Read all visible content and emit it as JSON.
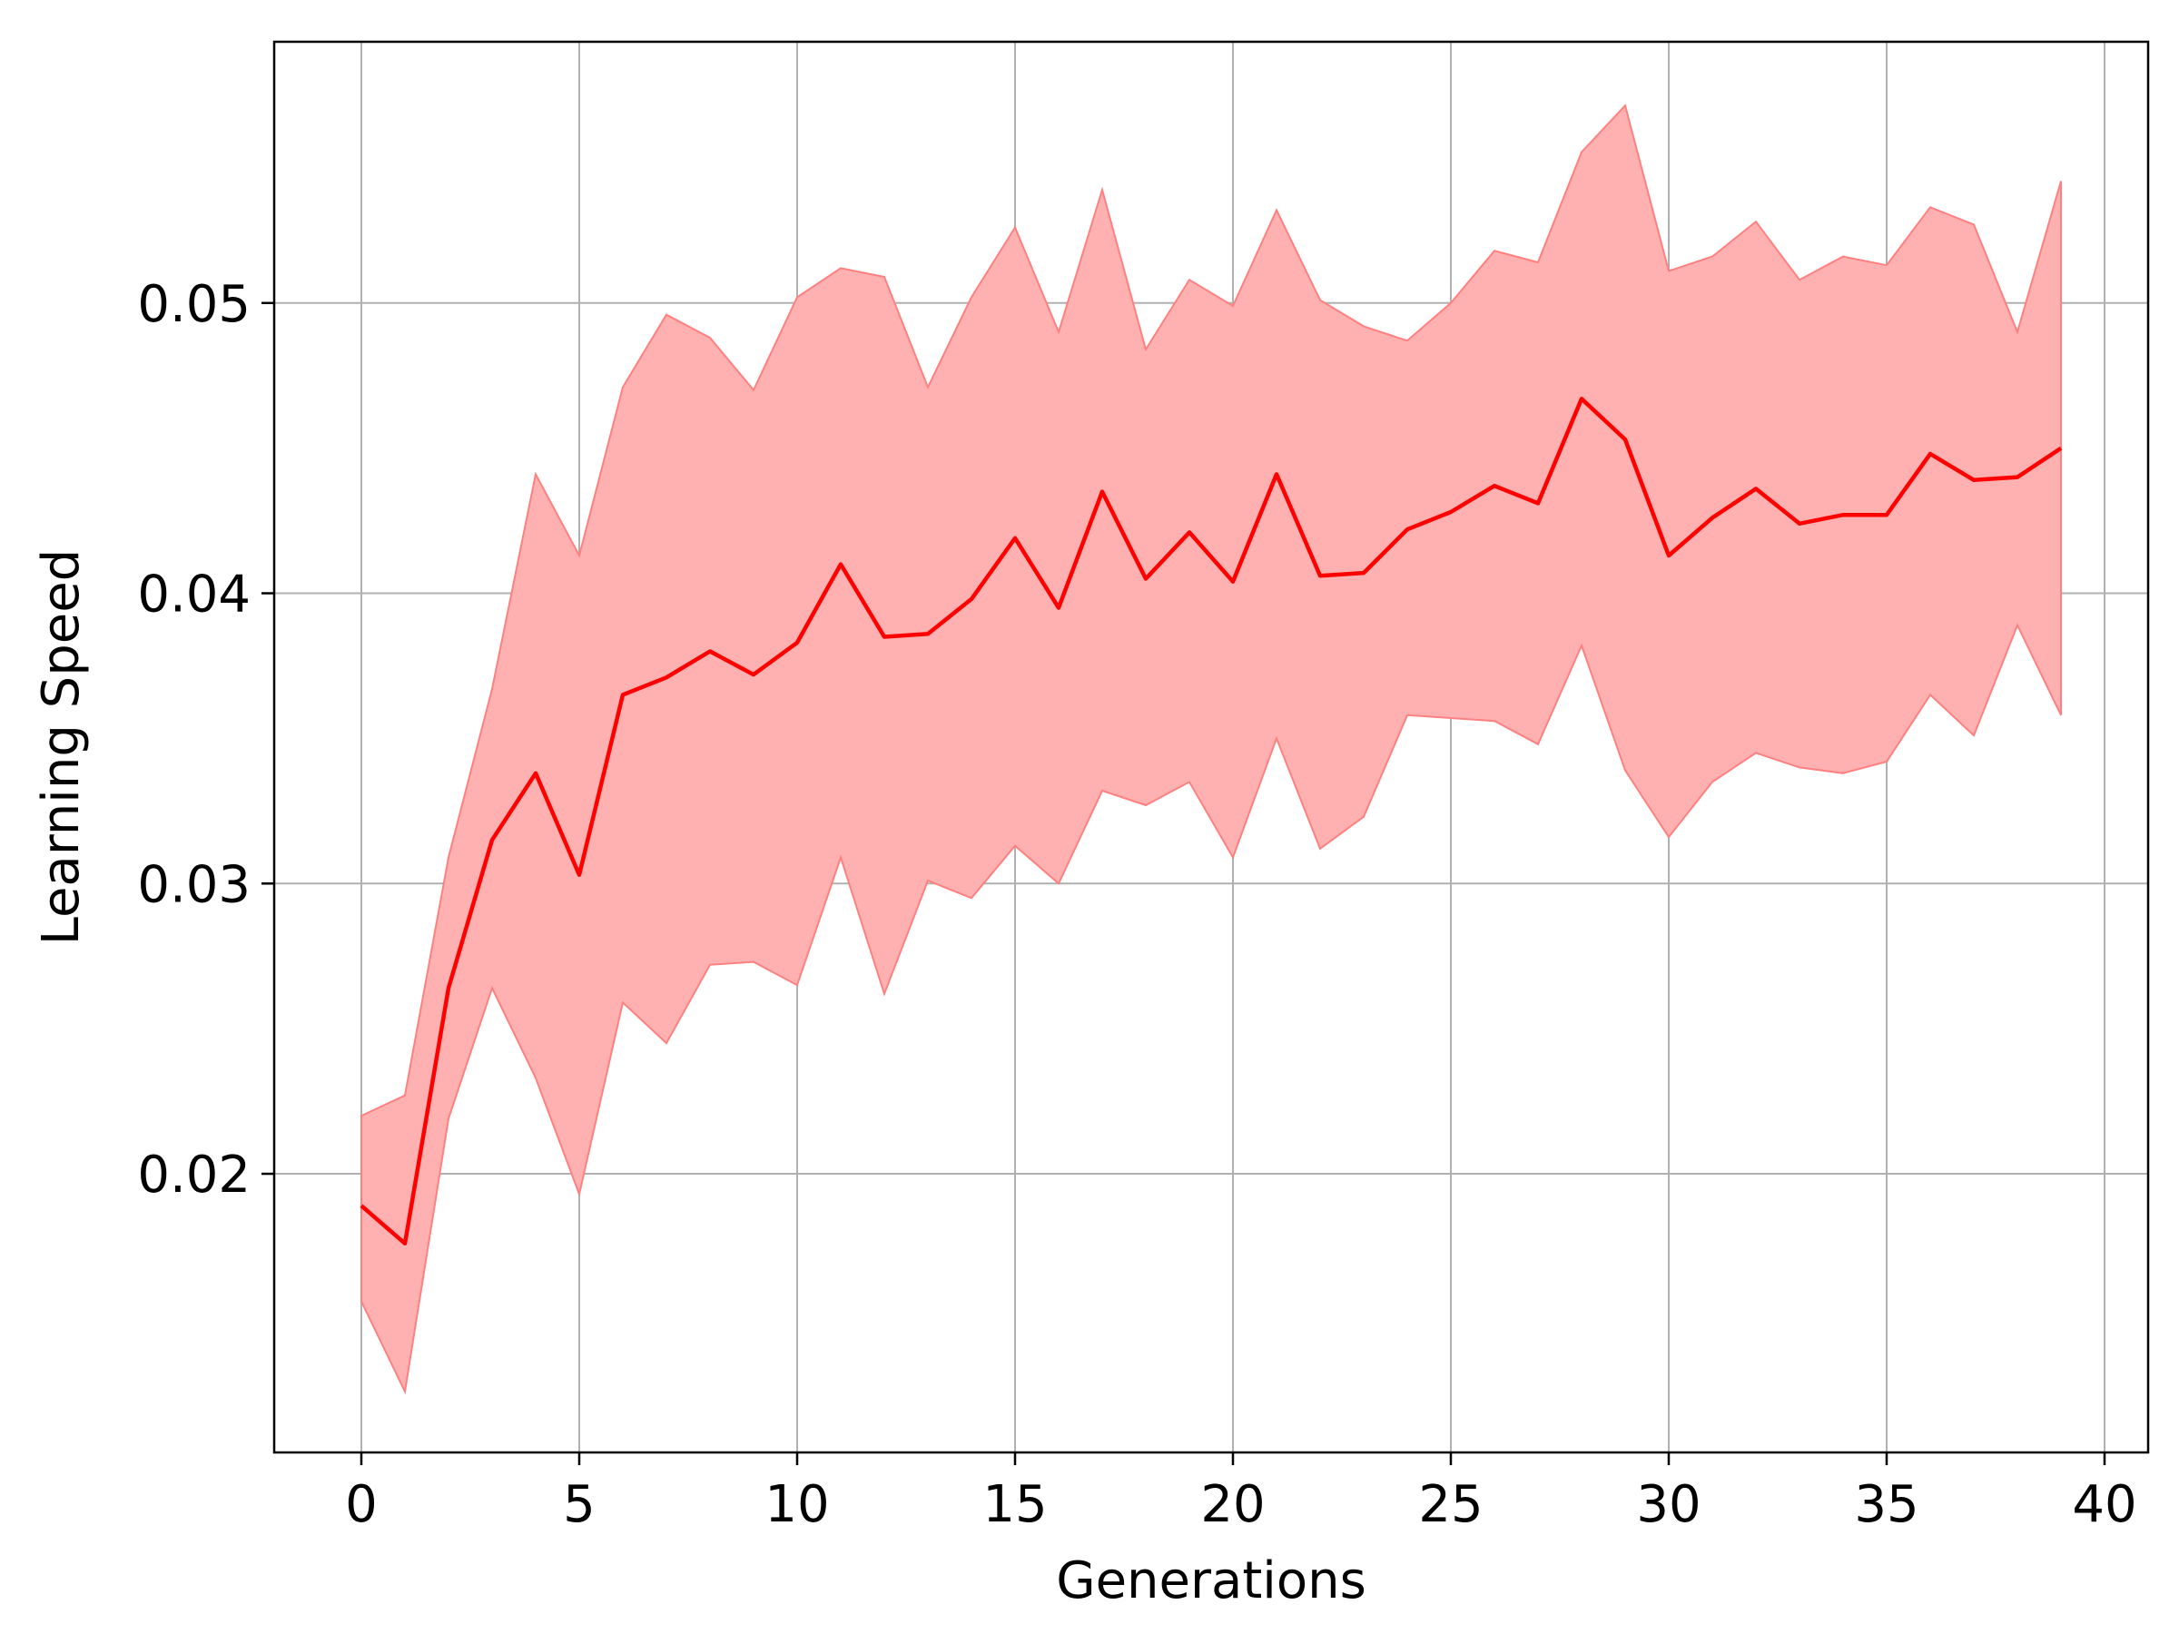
{
  "chart_data": {
    "type": "line",
    "title": "",
    "xlabel": "Generations",
    "ylabel": "Learning Speed",
    "xlim": [
      -2,
      41
    ],
    "ylim": [
      0.0104,
      0.059
    ],
    "grid": true,
    "legend": "none",
    "xticks": [
      0,
      5,
      10,
      15,
      20,
      25,
      30,
      35,
      40
    ],
    "xtick_labels": [
      "0",
      "5",
      "10",
      "15",
      "20",
      "25",
      "30",
      "35",
      "40"
    ],
    "yticks": [
      0.02,
      0.03,
      0.04,
      0.05
    ],
    "ytick_labels": [
      "0.02",
      "0.03",
      "0.04",
      "0.05"
    ],
    "colors": {
      "line": "#ff0000",
      "band": "#ffb0b0",
      "band_edge": "#ff8080",
      "grid": "#b0b0b0",
      "axes": "#000000"
    },
    "x": [
      0,
      1,
      2,
      3,
      4,
      5,
      6,
      7,
      8,
      9,
      10,
      11,
      12,
      13,
      14,
      15,
      16,
      17,
      18,
      19,
      20,
      21,
      22,
      23,
      24,
      25,
      26,
      27,
      28,
      29,
      30,
      31,
      32,
      33,
      34,
      35,
      36,
      37,
      38,
      39
    ],
    "series": [
      {
        "values": [
          0.0189,
          0.0176,
          0.0264,
          0.0315,
          0.0338,
          0.0303,
          0.0365,
          0.0371,
          0.038,
          0.0372,
          0.0383,
          0.041,
          0.0385,
          0.0386,
          0.0398,
          0.0419,
          0.0395,
          0.0435,
          0.0405,
          0.0421,
          0.0404,
          0.0441,
          0.0406,
          0.0407,
          0.0422,
          0.0428,
          0.0437,
          0.0431,
          0.0467,
          0.0453,
          0.0413,
          0.0426,
          0.0436,
          0.0424,
          0.0427,
          0.0427,
          0.0448,
          0.0439,
          0.044,
          0.045
        ],
        "lower": [
          0.0156,
          0.0125,
          0.0219,
          0.0264,
          0.0233,
          0.0193,
          0.0259,
          0.0245,
          0.0272,
          0.0273,
          0.0265,
          0.0309,
          0.0262,
          0.0301,
          0.0295,
          0.0313,
          0.03,
          0.0332,
          0.0327,
          0.0335,
          0.0309,
          0.035,
          0.0312,
          0.0323,
          0.0358,
          0.0357,
          0.0356,
          0.0348,
          0.0382,
          0.0339,
          0.0316,
          0.0335,
          0.0345,
          0.034,
          0.0338,
          0.0342,
          0.0365,
          0.0351,
          0.0389,
          0.0358
        ],
        "upper": [
          0.022,
          0.0227,
          0.0309,
          0.0367,
          0.0441,
          0.0413,
          0.0471,
          0.0496,
          0.0488,
          0.047,
          0.0502,
          0.0512,
          0.0509,
          0.0471,
          0.0502,
          0.0526,
          0.049,
          0.0539,
          0.0484,
          0.0508,
          0.0499,
          0.0532,
          0.0501,
          0.0492,
          0.0487,
          0.05,
          0.0518,
          0.0514,
          0.0552,
          0.0568,
          0.0511,
          0.0516,
          0.0528,
          0.0508,
          0.0516,
          0.0513,
          0.0533,
          0.0527,
          0.049,
          0.0542
        ]
      }
    ]
  }
}
